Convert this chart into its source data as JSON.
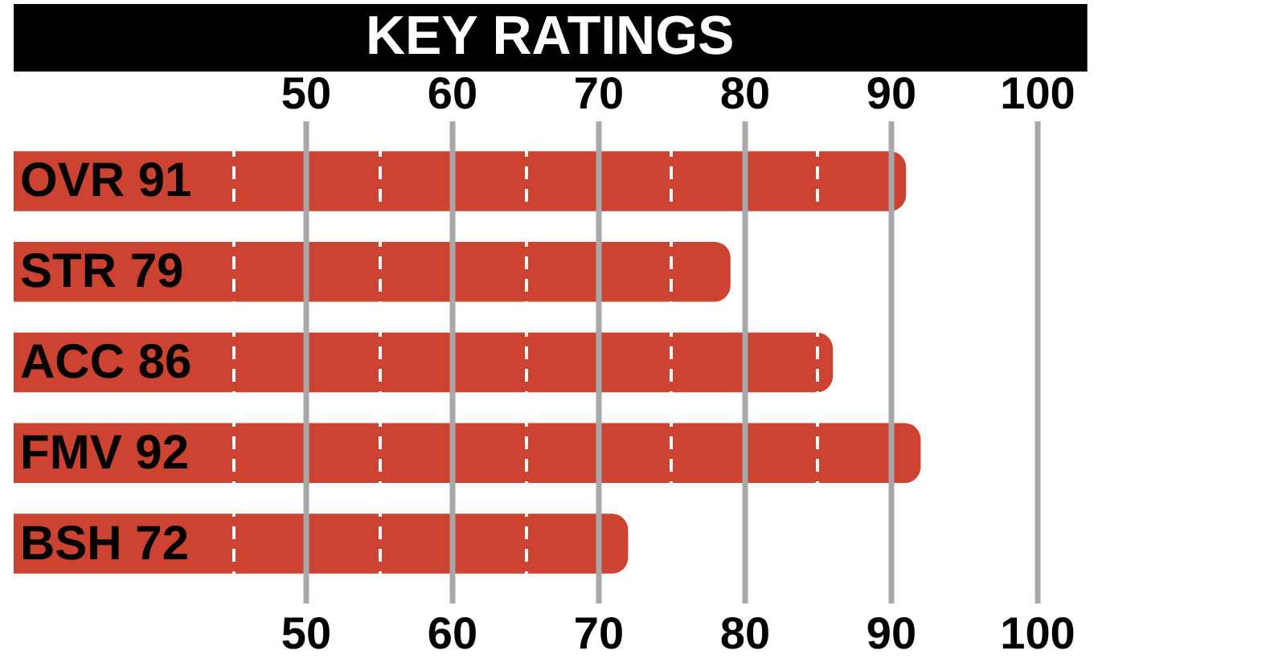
{
  "chart_data": {
    "type": "bar",
    "orientation": "horizontal",
    "title": "KEY RATINGS",
    "categories": [
      "OVR 91",
      "STR 79",
      "ACC 86",
      "FMV 92",
      "BSH 72"
    ],
    "values": [
      91,
      79,
      86,
      92,
      72
    ],
    "color": "#cc4332",
    "xlim": [
      30,
      100
    ],
    "xticks": [
      {
        "value": 45,
        "label": null
      },
      50,
      {
        "value": 55,
        "label": null
      },
      60,
      {
        "value": 65,
        "label": null
      },
      70,
      {
        "value": 75,
        "label": null
      },
      80,
      {
        "value": 85,
        "label": null
      },
      90,
      100
    ],
    "x2lim": [
      30,
      100
    ],
    "x2ticks": [
      50,
      60,
      70,
      80,
      90,
      100
    ],
    "grid": "x"
  }
}
